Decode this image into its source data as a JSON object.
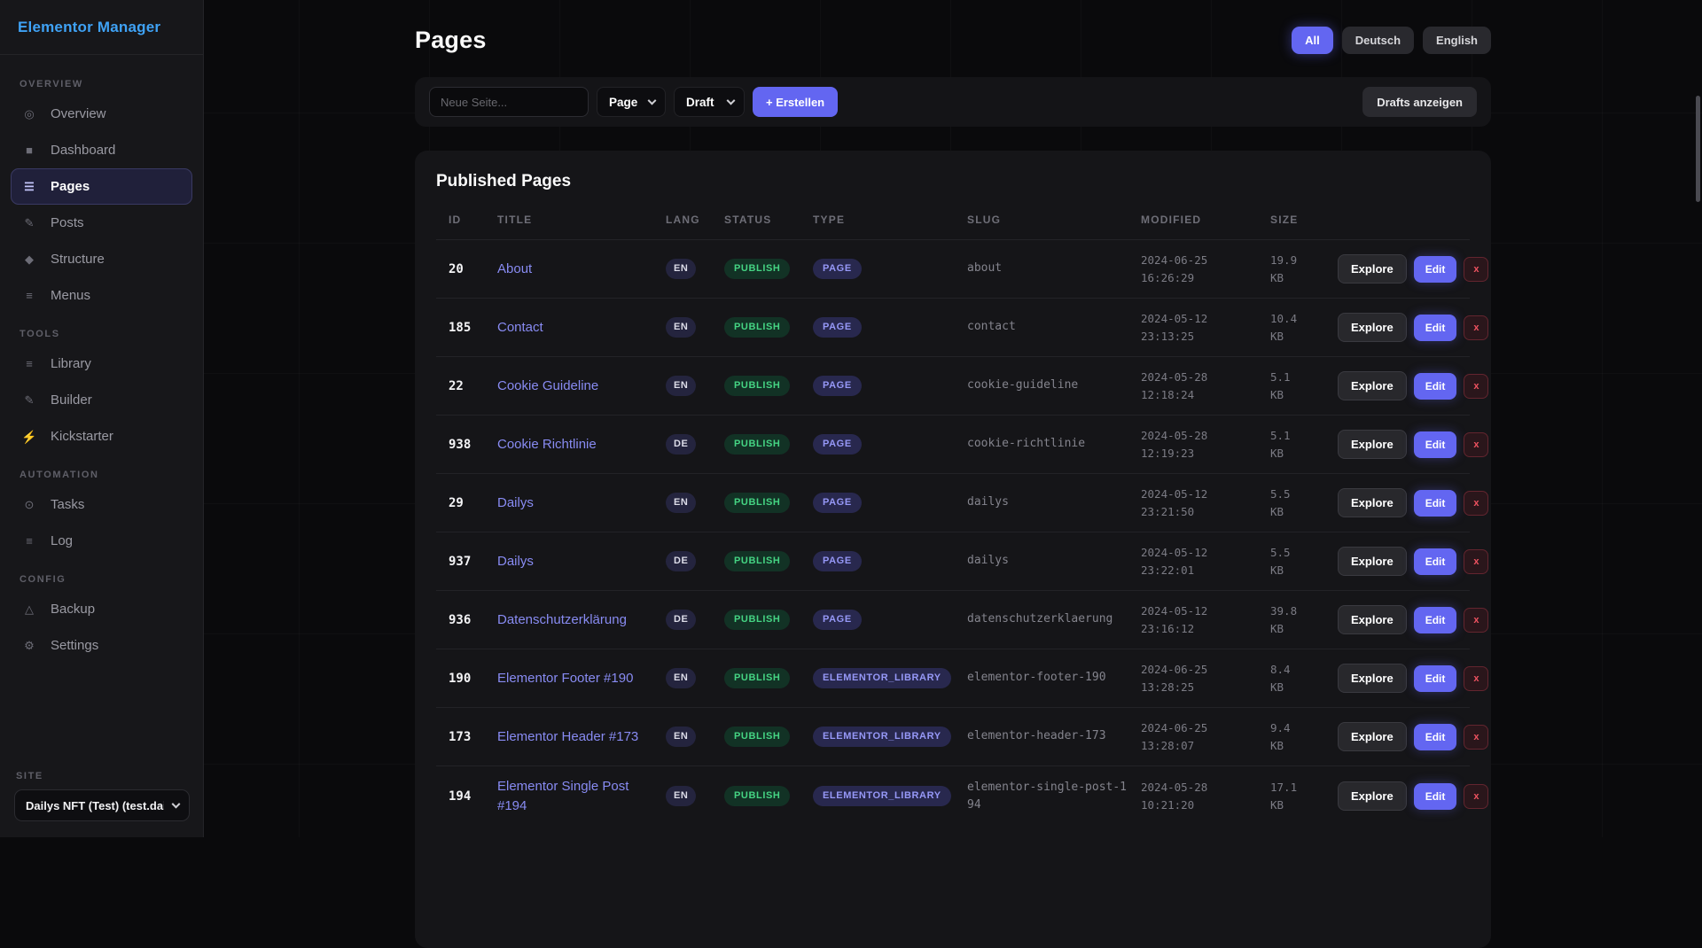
{
  "app": {
    "title": "Elementor Manager"
  },
  "sidebar": {
    "sections": [
      {
        "label": "OVERVIEW",
        "items": [
          {
            "label": "Overview",
            "icon": "overview-icon",
            "active": false
          },
          {
            "label": "Dashboard",
            "icon": "dashboard-icon",
            "active": false
          },
          {
            "label": "Pages",
            "icon": "pages-icon",
            "active": true
          },
          {
            "label": "Posts",
            "icon": "posts-icon",
            "active": false
          },
          {
            "label": "Structure",
            "icon": "structure-icon",
            "active": false
          },
          {
            "label": "Menus",
            "icon": "menus-icon",
            "active": false
          }
        ]
      },
      {
        "label": "TOOLS",
        "items": [
          {
            "label": "Library",
            "icon": "library-icon",
            "active": false
          },
          {
            "label": "Builder",
            "icon": "builder-icon",
            "active": false
          },
          {
            "label": "Kickstarter",
            "icon": "kickstarter-icon",
            "active": false
          }
        ]
      },
      {
        "label": "AUTOMATION",
        "items": [
          {
            "label": "Tasks",
            "icon": "tasks-icon",
            "active": false
          },
          {
            "label": "Log",
            "icon": "log-icon",
            "active": false
          }
        ]
      },
      {
        "label": "CONFIG",
        "items": [
          {
            "label": "Backup",
            "icon": "backup-icon",
            "active": false
          },
          {
            "label": "Settings",
            "icon": "settings-icon",
            "active": false
          }
        ]
      }
    ],
    "site": {
      "label": "SITE",
      "selected": "Dailys NFT (Test) (test.daily"
    }
  },
  "header": {
    "title": "Pages",
    "filters": [
      {
        "label": "All",
        "active": true
      },
      {
        "label": "Deutsch",
        "active": false
      },
      {
        "label": "English",
        "active": false
      }
    ]
  },
  "toolbar": {
    "input_placeholder": "Neue Seite...",
    "type_select": "Page",
    "status_select": "Draft",
    "create_label": "+ Erstellen",
    "drafts_label": "Drafts anzeigen"
  },
  "table": {
    "title": "Published Pages",
    "columns": [
      "ID",
      "TITLE",
      "LANG",
      "STATUS",
      "TYPE",
      "SLUG",
      "MODIFIED",
      "SIZE"
    ],
    "actions": {
      "explore": "Explore",
      "edit": "Edit",
      "delete": "x"
    },
    "rows": [
      {
        "id": "20",
        "title": "About",
        "lang": "EN",
        "status": "PUBLISH",
        "type": "PAGE",
        "slug": "about",
        "modified_date": "2024-06-25",
        "modified_time": "16:26:29",
        "size": "19.9",
        "size_unit": "KB"
      },
      {
        "id": "185",
        "title": "Contact",
        "lang": "EN",
        "status": "PUBLISH",
        "type": "PAGE",
        "slug": "contact",
        "modified_date": "2024-05-12",
        "modified_time": "23:13:25",
        "size": "10.4",
        "size_unit": "KB"
      },
      {
        "id": "22",
        "title": "Cookie Guideline",
        "lang": "EN",
        "status": "PUBLISH",
        "type": "PAGE",
        "slug": "cookie-guideline",
        "modified_date": "2024-05-28",
        "modified_time": "12:18:24",
        "size": "5.1",
        "size_unit": "KB"
      },
      {
        "id": "938",
        "title": "Cookie Richtlinie",
        "lang": "DE",
        "status": "PUBLISH",
        "type": "PAGE",
        "slug": "cookie-richtlinie",
        "modified_date": "2024-05-28",
        "modified_time": "12:19:23",
        "size": "5.1",
        "size_unit": "KB"
      },
      {
        "id": "29",
        "title": "Dailys",
        "lang": "EN",
        "status": "PUBLISH",
        "type": "PAGE",
        "slug": "dailys",
        "modified_date": "2024-05-12",
        "modified_time": "23:21:50",
        "size": "5.5",
        "size_unit": "KB"
      },
      {
        "id": "937",
        "title": "Dailys",
        "lang": "DE",
        "status": "PUBLISH",
        "type": "PAGE",
        "slug": "dailys",
        "modified_date": "2024-05-12",
        "modified_time": "23:22:01",
        "size": "5.5",
        "size_unit": "KB"
      },
      {
        "id": "936",
        "title": "Datenschutzerklärung",
        "lang": "DE",
        "status": "PUBLISH",
        "type": "PAGE",
        "slug": "datenschutzerklaerung",
        "modified_date": "2024-05-12",
        "modified_time": "23:16:12",
        "size": "39.8",
        "size_unit": "KB"
      },
      {
        "id": "190",
        "title": "Elementor Footer #190",
        "lang": "EN",
        "status": "PUBLISH",
        "type": "ELEMENTOR_LIBRARY",
        "slug": "elementor-footer-190",
        "modified_date": "2024-06-25",
        "modified_time": "13:28:25",
        "size": "8.4",
        "size_unit": "KB"
      },
      {
        "id": "173",
        "title": "Elementor Header #173",
        "lang": "EN",
        "status": "PUBLISH",
        "type": "ELEMENTOR_LIBRARY",
        "slug": "elementor-header-173",
        "modified_date": "2024-06-25",
        "modified_time": "13:28:07",
        "size": "9.4",
        "size_unit": "KB"
      },
      {
        "id": "194",
        "title": "Elementor Single Post #194",
        "lang": "EN",
        "status": "PUBLISH",
        "type": "ELEMENTOR_LIBRARY",
        "slug": "elementor-single-post-194",
        "modified_date": "2024-05-28",
        "modified_time": "10:21:20",
        "size": "17.1",
        "size_unit": "KB"
      }
    ]
  },
  "colors": {
    "accent": "#6366f1",
    "brand": "#3fa2f5",
    "status_publish": "#45d483",
    "type_badge": "#9698f7",
    "delete": "#ef5361",
    "kickstarter": "#e8633c"
  }
}
